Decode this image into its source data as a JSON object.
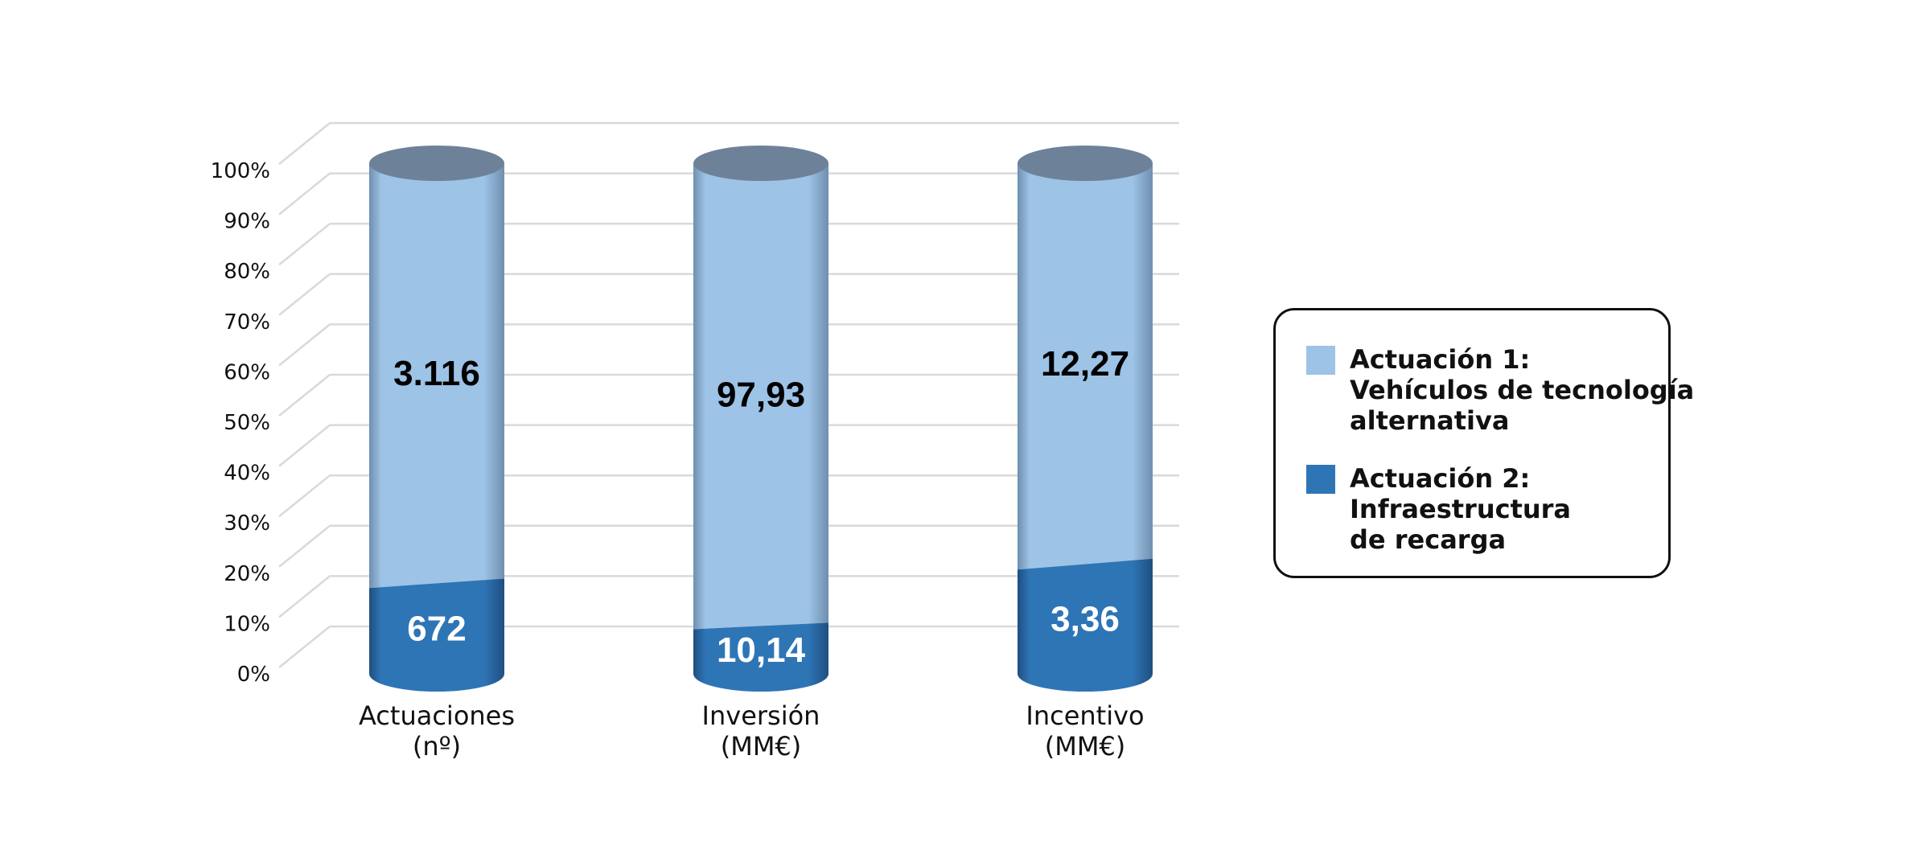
{
  "chart_data": {
    "type": "bar",
    "stacked": true,
    "normalized": true,
    "categories": [
      {
        "line1": "Actuaciones",
        "line2": "(nº)"
      },
      {
        "line1": "Inversión",
        "line2": "(MM€)"
      },
      {
        "line1": "Incentivo",
        "line2": "(MM€)"
      }
    ],
    "series": [
      {
        "name_lines": [
          "Actuación 2:",
          "Infraestructura",
          "de recarga"
        ],
        "color": "#2e75b6",
        "values": [
          672,
          10.14,
          3.36
        ],
        "labels": [
          "672",
          "10,14",
          "3,36"
        ],
        "label_color": "#ffffff"
      },
      {
        "name_lines": [
          "Actuación 1:",
          "Vehículos de tecnología",
          "alternativa"
        ],
        "color": "#9dc3e6",
        "values": [
          3116,
          97.93,
          12.27
        ],
        "labels": [
          "3.116",
          "97,93",
          "12,27"
        ],
        "label_color": "#000000"
      }
    ],
    "yticks": [
      "0%",
      "10%",
      "20%",
      "30%",
      "40%",
      "50%",
      "60%",
      "70%",
      "80%",
      "90%",
      "100%"
    ],
    "ylim": [
      0,
      100
    ],
    "grid": true,
    "legend_position": "right"
  }
}
